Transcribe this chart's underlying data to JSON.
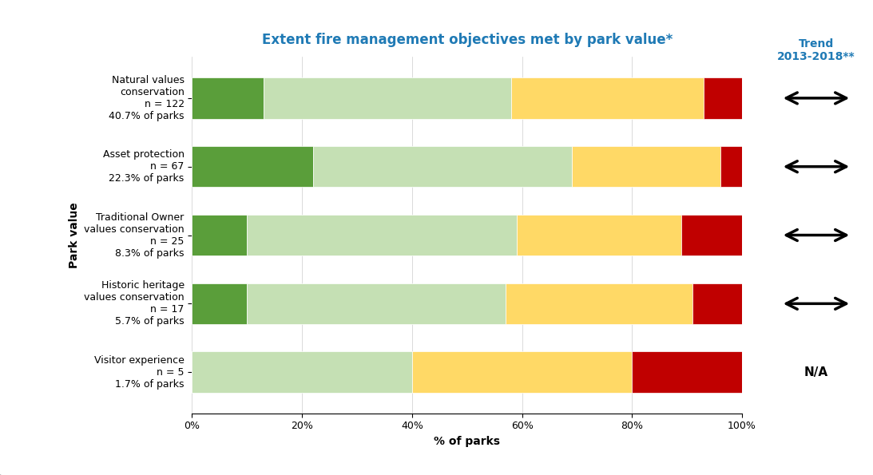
{
  "title": "Extent fire management objectives met by park value*",
  "xlabel": "% of parks",
  "ylabel": "Park value",
  "categories": [
    "Natural values\nconservation\nn = 122\n40.7% of parks",
    "Asset protection\nn = 67\n22.3% of parks",
    "Traditional Owner\nvalues conservation\nn = 25\n8.3% of parks",
    "Historic heritage\nvalues conservation\nn = 17\n5.7% of parks",
    "Visitor experience\nn = 5\n1.7% of parks"
  ],
  "segments": {
    "Fully": [
      13,
      22,
      10,
      10,
      0
    ],
    "Substantially": [
      45,
      47,
      49,
      47,
      40
    ],
    "Partially": [
      35,
      27,
      30,
      34,
      40
    ],
    "Not at all": [
      7,
      4,
      11,
      9,
      20
    ]
  },
  "colors": {
    "Fully": "#5a9e3a",
    "Substantially": "#c5e0b4",
    "Partially": "#ffd966",
    "Not at all": "#c00000"
  },
  "trend_label": "Trend\n2013-2018**",
  "trend_color": "#1f7ab5",
  "na_label": "N/A",
  "xticks": [
    0,
    20,
    40,
    60,
    80,
    100
  ],
  "xtick_labels": [
    "0%",
    "20%",
    "40%",
    "60%",
    "80%",
    "100%"
  ],
  "title_color": "#1f7ab5",
  "title_fontsize": 12,
  "axis_fontsize": 10,
  "legend_fontsize": 10,
  "bar_height": 0.6
}
